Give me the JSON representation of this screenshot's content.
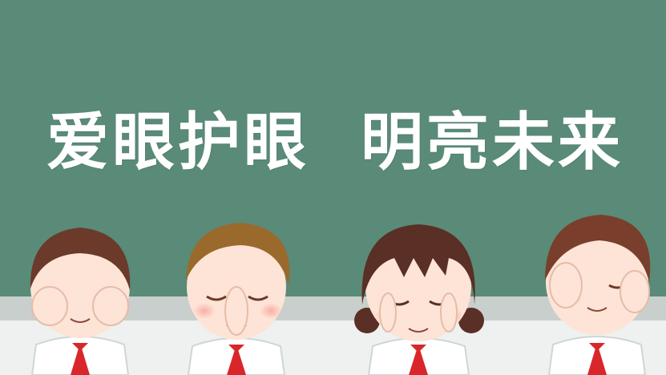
{
  "slogan": {
    "left": "爱眼护眼",
    "right": "明亮未来"
  },
  "colors": {
    "board": "#5a8a78",
    "text": "#ffffff",
    "scarf": "#d9262b",
    "skin": "#fde4d6",
    "hair_dark": "#6b3a2a",
    "hair_light": "#9a6a2c"
  },
  "figures": [
    "child-boy-1",
    "child-boy-2",
    "child-girl",
    "child-boy-3"
  ]
}
